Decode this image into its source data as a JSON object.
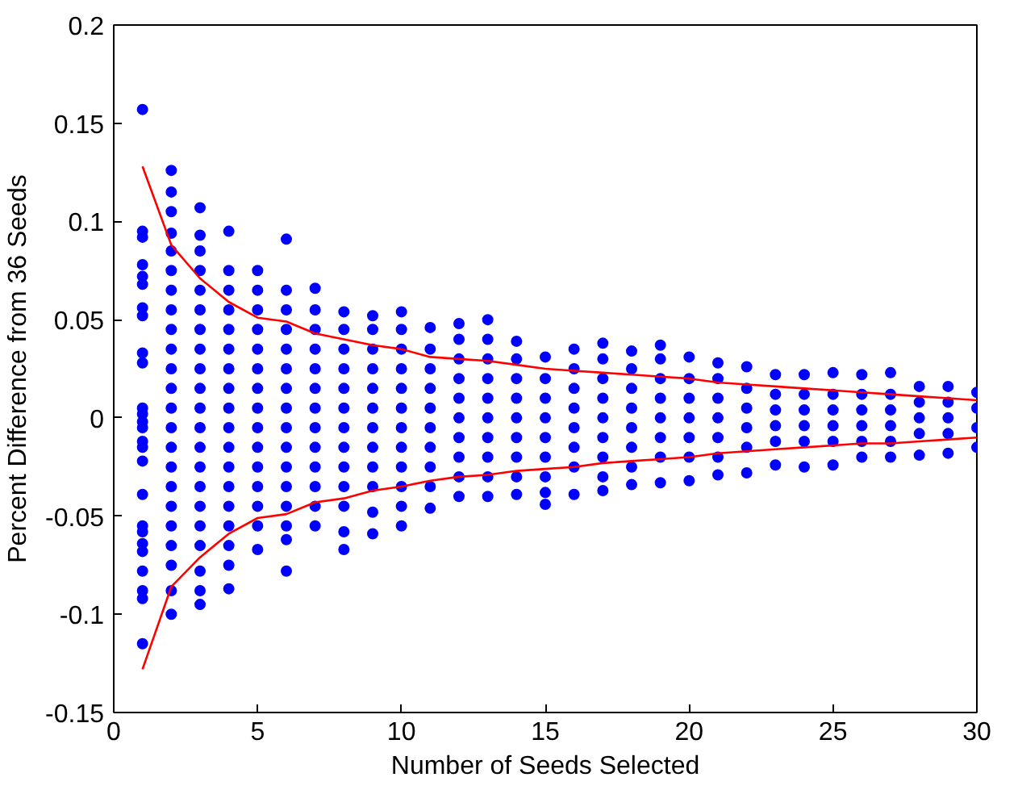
{
  "chart_data": {
    "type": "scatter",
    "xlabel": "Number of Seeds Selected",
    "ylabel": "Percent Difference from 36 Seeds",
    "xlim": [
      0,
      30
    ],
    "ylim": [
      -0.15,
      0.2
    ],
    "xticks": [
      0,
      5,
      10,
      15,
      20,
      25,
      30
    ],
    "yticks": [
      -0.15,
      -0.1,
      -0.05,
      0,
      0.05,
      0.1,
      0.15,
      0.2
    ],
    "grid": false,
    "marker": "circle",
    "series": [
      {
        "color": "#0000ff",
        "x": [
          1,
          1,
          1,
          1,
          1,
          1,
          1,
          1,
          1,
          1,
          1,
          1,
          1,
          1,
          1,
          1,
          1,
          1,
          1,
          1,
          1,
          1,
          1,
          1,
          1,
          1
        ],
        "values": [
          0.157,
          0.095,
          0.092,
          0.078,
          0.072,
          0.068,
          0.056,
          0.052,
          0.033,
          0.028,
          0.005,
          0.002,
          -0.002,
          -0.005,
          -0.012,
          -0.015,
          -0.022,
          -0.039,
          -0.055,
          -0.058,
          -0.064,
          -0.068,
          -0.078,
          -0.088,
          -0.092,
          -0.115
        ]
      },
      {
        "color": "#0000ff",
        "x": [
          2,
          2,
          2,
          2,
          2,
          2,
          2,
          2,
          2,
          2,
          2,
          2,
          2,
          2,
          2,
          2,
          2,
          2,
          2,
          2,
          2,
          2,
          2
        ],
        "values": [
          0.126,
          0.115,
          0.105,
          0.094,
          0.085,
          0.075,
          0.065,
          0.055,
          0.045,
          0.035,
          0.025,
          0.015,
          0.005,
          -0.005,
          -0.015,
          -0.025,
          -0.035,
          -0.045,
          -0.055,
          -0.065,
          -0.075,
          -0.088,
          -0.1
        ]
      },
      {
        "color": "#0000ff",
        "x": [
          3,
          3,
          3,
          3,
          3,
          3,
          3,
          3,
          3,
          3,
          3,
          3,
          3,
          3,
          3,
          3,
          3,
          3,
          3,
          3,
          3
        ],
        "values": [
          0.107,
          0.093,
          0.085,
          0.075,
          0.065,
          0.055,
          0.045,
          0.035,
          0.025,
          0.015,
          0.005,
          -0.005,
          -0.015,
          -0.025,
          -0.035,
          -0.045,
          -0.055,
          -0.065,
          -0.078,
          -0.088,
          -0.095
        ]
      },
      {
        "color": "#0000ff",
        "x": [
          4,
          4,
          4,
          4,
          4,
          4,
          4,
          4,
          4,
          4,
          4,
          4,
          4,
          4,
          4,
          4,
          4,
          4
        ],
        "values": [
          0.095,
          0.075,
          0.065,
          0.055,
          0.045,
          0.035,
          0.025,
          0.015,
          0.005,
          -0.005,
          -0.015,
          -0.025,
          -0.035,
          -0.045,
          -0.055,
          -0.065,
          -0.075,
          -0.087
        ]
      },
      {
        "color": "#0000ff",
        "x": [
          5,
          5,
          5,
          5,
          5,
          5,
          5,
          5,
          5,
          5,
          5,
          5,
          5,
          5,
          5
        ],
        "values": [
          0.075,
          0.065,
          0.055,
          0.045,
          0.035,
          0.025,
          0.015,
          0.005,
          -0.005,
          -0.015,
          -0.025,
          -0.035,
          -0.045,
          -0.055,
          -0.067
        ]
      },
      {
        "color": "#0000ff",
        "x": [
          6,
          6,
          6,
          6,
          6,
          6,
          6,
          6,
          6,
          6,
          6,
          6,
          6,
          6,
          6,
          6
        ],
        "values": [
          0.091,
          0.065,
          0.055,
          0.045,
          0.035,
          0.025,
          0.015,
          0.005,
          -0.005,
          -0.015,
          -0.025,
          -0.035,
          -0.045,
          -0.055,
          -0.062,
          -0.078
        ]
      },
      {
        "color": "#0000ff",
        "x": [
          7,
          7,
          7,
          7,
          7,
          7,
          7,
          7,
          7,
          7,
          7,
          7,
          7
        ],
        "values": [
          0.066,
          0.055,
          0.045,
          0.035,
          0.025,
          0.015,
          0.005,
          -0.005,
          -0.015,
          -0.025,
          -0.035,
          -0.045,
          -0.055
        ]
      },
      {
        "color": "#0000ff",
        "x": [
          8,
          8,
          8,
          8,
          8,
          8,
          8,
          8,
          8,
          8,
          8,
          8,
          8
        ],
        "values": [
          0.054,
          0.045,
          0.035,
          0.025,
          0.015,
          0.005,
          -0.005,
          -0.015,
          -0.025,
          -0.035,
          -0.045,
          -0.058,
          -0.067
        ]
      },
      {
        "color": "#0000ff",
        "x": [
          9,
          9,
          9,
          9,
          9,
          9,
          9,
          9,
          9,
          9,
          9,
          9
        ],
        "values": [
          0.052,
          0.045,
          0.035,
          0.025,
          0.015,
          0.005,
          -0.005,
          -0.015,
          -0.025,
          -0.035,
          -0.048,
          -0.059
        ]
      },
      {
        "color": "#0000ff",
        "x": [
          10,
          10,
          10,
          10,
          10,
          10,
          10,
          10,
          10,
          10,
          10,
          10
        ],
        "values": [
          0.054,
          0.045,
          0.035,
          0.025,
          0.015,
          0.005,
          -0.005,
          -0.015,
          -0.025,
          -0.035,
          -0.045,
          -0.055
        ]
      },
      {
        "color": "#0000ff",
        "x": [
          11,
          11,
          11,
          11,
          11,
          11,
          11,
          11,
          11,
          11
        ],
        "values": [
          0.046,
          0.035,
          0.025,
          0.015,
          0.005,
          -0.005,
          -0.015,
          -0.025,
          -0.035,
          -0.046
        ]
      },
      {
        "color": "#0000ff",
        "x": [
          12,
          12,
          12,
          12,
          12,
          12,
          12,
          12,
          12,
          12
        ],
        "values": [
          0.048,
          0.04,
          0.03,
          0.02,
          0.01,
          0,
          -0.01,
          -0.02,
          -0.03,
          -0.04
        ]
      },
      {
        "color": "#0000ff",
        "x": [
          13,
          13,
          13,
          13,
          13,
          13,
          13,
          13,
          13,
          13
        ],
        "values": [
          0.05,
          0.04,
          0.03,
          0.02,
          0.01,
          0,
          -0.01,
          -0.02,
          -0.03,
          -0.04
        ]
      },
      {
        "color": "#0000ff",
        "x": [
          14,
          14,
          14,
          14,
          14,
          14,
          14,
          14,
          14
        ],
        "values": [
          0.039,
          0.03,
          0.02,
          0.01,
          0,
          -0.01,
          -0.02,
          -0.03,
          -0.039
        ]
      },
      {
        "color": "#0000ff",
        "x": [
          15,
          15,
          15,
          15,
          15,
          15,
          15,
          15,
          15
        ],
        "values": [
          0.031,
          0.02,
          0.01,
          0,
          -0.01,
          -0.02,
          -0.03,
          -0.038,
          -0.044
        ]
      },
      {
        "color": "#0000ff",
        "x": [
          16,
          16,
          16,
          16,
          16,
          16,
          16,
          16
        ],
        "values": [
          0.035,
          0.025,
          0.015,
          0.005,
          -0.005,
          -0.015,
          -0.025,
          -0.039
        ]
      },
      {
        "color": "#0000ff",
        "x": [
          17,
          17,
          17,
          17,
          17,
          17,
          17,
          17,
          17
        ],
        "values": [
          0.038,
          0.03,
          0.02,
          0.01,
          0,
          -0.01,
          -0.02,
          -0.03,
          -0.037
        ]
      },
      {
        "color": "#0000ff",
        "x": [
          18,
          18,
          18,
          18,
          18,
          18,
          18,
          18
        ],
        "values": [
          0.034,
          0.025,
          0.015,
          0.005,
          -0.005,
          -0.015,
          -0.025,
          -0.034
        ]
      },
      {
        "color": "#0000ff",
        "x": [
          19,
          19,
          19,
          19,
          19,
          19,
          19,
          19
        ],
        "values": [
          0.037,
          0.03,
          0.02,
          0.01,
          0,
          -0.01,
          -0.02,
          -0.033
        ]
      },
      {
        "color": "#0000ff",
        "x": [
          20,
          20,
          20,
          20,
          20,
          20,
          20
        ],
        "values": [
          0.031,
          0.02,
          0.01,
          0,
          -0.01,
          -0.02,
          -0.032
        ]
      },
      {
        "color": "#0000ff",
        "x": [
          21,
          21,
          21,
          21,
          21,
          21,
          21
        ],
        "values": [
          0.028,
          0.02,
          0.01,
          0,
          -0.01,
          -0.02,
          -0.029
        ]
      },
      {
        "color": "#0000ff",
        "x": [
          22,
          22,
          22,
          22,
          22,
          22
        ],
        "values": [
          0.026,
          0.015,
          0.005,
          -0.005,
          -0.015,
          -0.028
        ]
      },
      {
        "color": "#0000ff",
        "x": [
          23,
          23,
          23,
          23,
          23,
          23
        ],
        "values": [
          0.022,
          0.012,
          0.004,
          -0.004,
          -0.012,
          -0.024
        ]
      },
      {
        "color": "#0000ff",
        "x": [
          24,
          24,
          24,
          24,
          24,
          24
        ],
        "values": [
          0.022,
          0.012,
          0.004,
          -0.004,
          -0.012,
          -0.025
        ]
      },
      {
        "color": "#0000ff",
        "x": [
          25,
          25,
          25,
          25,
          25,
          25
        ],
        "values": [
          0.023,
          0.012,
          0.004,
          -0.004,
          -0.012,
          -0.024
        ]
      },
      {
        "color": "#0000ff",
        "x": [
          26,
          26,
          26,
          26,
          26,
          26
        ],
        "values": [
          0.022,
          0.012,
          0.004,
          -0.004,
          -0.012,
          -0.02
        ]
      },
      {
        "color": "#0000ff",
        "x": [
          27,
          27,
          27,
          27,
          27,
          27
        ],
        "values": [
          0.023,
          0.012,
          0.004,
          -0.004,
          -0.012,
          -0.02
        ]
      },
      {
        "color": "#0000ff",
        "x": [
          28,
          28,
          28,
          28,
          28
        ],
        "values": [
          0.016,
          0.008,
          0,
          -0.008,
          -0.019
        ]
      },
      {
        "color": "#0000ff",
        "x": [
          29,
          29,
          29,
          29,
          29
        ],
        "values": [
          0.016,
          0.008,
          0,
          -0.008,
          -0.018
        ]
      },
      {
        "color": "#0000ff",
        "x": [
          30,
          30,
          30,
          30
        ],
        "values": [
          0.013,
          0.005,
          -0.005,
          -0.015
        ]
      },
      {
        "type": "line",
        "color": "#ff0000",
        "marker": "none",
        "x": [
          1,
          2,
          3,
          4,
          5,
          6,
          7,
          8,
          9,
          10,
          11,
          12,
          13,
          14,
          15,
          16,
          17,
          18,
          19,
          20,
          21,
          22,
          23,
          24,
          25,
          26,
          27,
          28,
          29,
          30
        ],
        "values": [
          0.128,
          0.088,
          0.071,
          0.059,
          0.051,
          0.049,
          0.043,
          0.04,
          0.037,
          0.035,
          0.031,
          0.03,
          0.029,
          0.027,
          0.025,
          0.024,
          0.023,
          0.022,
          0.021,
          0.02,
          0.018,
          0.017,
          0.016,
          0.015,
          0.014,
          0.013,
          0.012,
          0.011,
          0.01,
          0.009
        ]
      },
      {
        "type": "line",
        "color": "#ff0000",
        "marker": "none",
        "x": [
          1,
          2,
          3,
          4,
          5,
          6,
          7,
          8,
          9,
          10,
          11,
          12,
          13,
          14,
          15,
          16,
          17,
          18,
          19,
          20,
          21,
          22,
          23,
          24,
          25,
          26,
          27,
          28,
          29,
          30
        ],
        "values": [
          -0.128,
          -0.086,
          -0.071,
          -0.059,
          -0.051,
          -0.049,
          -0.043,
          -0.041,
          -0.037,
          -0.035,
          -0.032,
          -0.03,
          -0.029,
          -0.027,
          -0.026,
          -0.025,
          -0.023,
          -0.022,
          -0.021,
          -0.02,
          -0.018,
          -0.017,
          -0.016,
          -0.015,
          -0.014,
          -0.013,
          -0.013,
          -0.012,
          -0.011,
          -0.01
        ]
      }
    ]
  }
}
